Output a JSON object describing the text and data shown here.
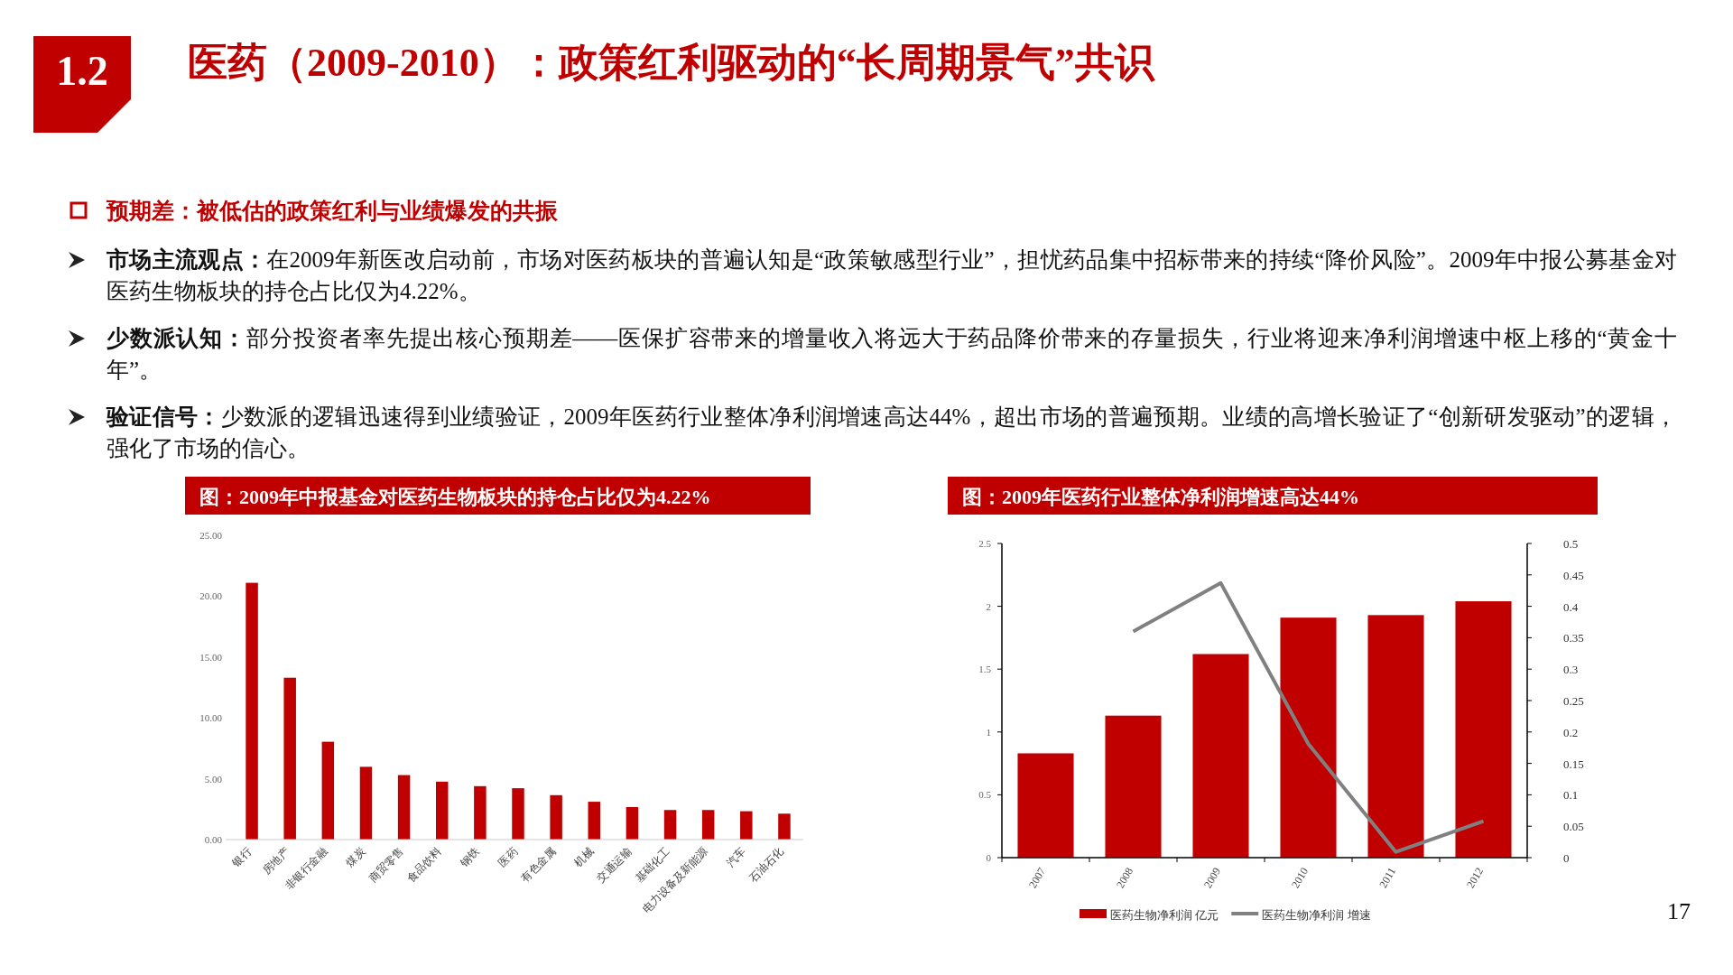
{
  "chart_data": [
    {
      "type": "other",
      "title": "医药（2009-2010）：政策红利驱动的“长周期景气”共识",
      "subtitle": "预期差：被低估的政策红利与业绩爆发的共振",
      "annotations": [
        "1.2",
        "市场主流观点：在2009年新医改启动前，市场对医药板块的普遍认知是“政策敏感型行业”，担忧药品集中招标带来的持续“降价风险”。2009年中报公募基金对医药生物板块的持仓占比仅为4.22%。",
        "少数派认知：部分投资者率先提出核心预期差——医保扩容带来的增量收入将远大于药品降价带来的存量损失，行业将迎来净利润增速中枢上移的“黄金十年”。",
        "验证信号：少数派的逻辑迅速得到业绩验证，2009年医药行业整体净利润增速高达44%，超出市场的普遍预期。业绩的高增长验证了“创新研发驱动”的逻辑，强化了市场的信心。",
        "17"
      ]
    },
    {
      "type": "bar",
      "title": "图：2009年中报基金对医药生物板块的持仓占比仅为4.22%",
      "categories": [
        "银行",
        "房地产",
        "非银行金融",
        "煤炭",
        "商贸零售",
        "食品饮料",
        "钢铁",
        "医药",
        "有色金属",
        "机械",
        "交通运输",
        "基础化工",
        "电力设备及新能源",
        "汽车",
        "石油石化"
      ],
      "values": [
        21.1,
        13.3,
        8.04,
        5.98,
        5.3,
        4.76,
        4.39,
        4.22,
        3.65,
        3.11,
        2.67,
        2.43,
        2.43,
        2.33,
        2.13
      ],
      "color": "#c00000",
      "ylim": [
        0,
        25
      ],
      "yticks": [
        {
          "value": 0,
          "label": "0.00"
        },
        {
          "value": 5,
          "label": "5.00"
        },
        {
          "value": 10,
          "label": "10.00"
        },
        {
          "value": 15,
          "label": "15.00"
        },
        {
          "value": 20,
          "label": "20.00"
        },
        {
          "value": 25,
          "label": "25.00"
        }
      ],
      "grid": false
    },
    {
      "type": "bar",
      "title": "图：2009年医药行业整体净利润增速高达44%",
      "categories": [
        "2007",
        "2008",
        "2009",
        "2010",
        "2011",
        "2012"
      ],
      "series": [
        {
          "name": "医药生物净利润 亿元",
          "type": "bar",
          "color": "#c00000",
          "values": [
            0.83,
            1.13,
            1.62,
            1.91,
            1.93,
            2.04
          ]
        },
        {
          "name": "医药生物净利润 增速",
          "type": "line",
          "axis": "y2",
          "color": "#808080",
          "values": [
            null,
            0.36,
            0.437,
            0.181,
            0.009,
            0.058
          ]
        }
      ],
      "ylim": [
        0,
        2.5
      ],
      "yticks": [
        0,
        0.5,
        1,
        1.5,
        2,
        2.5
      ],
      "y2lim": [
        0,
        0.5
      ],
      "y2ticks": [
        0,
        0.05,
        0.1,
        0.15,
        0.2,
        0.25,
        0.3,
        0.35,
        0.4,
        0.45,
        0.5
      ],
      "legend": "bottom",
      "marker": "none",
      "line_style": "solid",
      "grid": false
    }
  ]
}
